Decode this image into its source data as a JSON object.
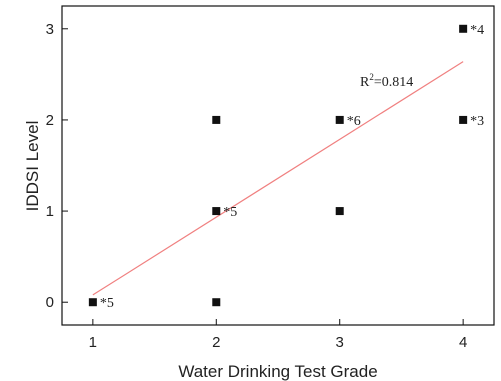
{
  "chart_data": {
    "type": "scatter",
    "title": "",
    "xlabel": "Water Drinking Test Grade",
    "ylabel": "IDDSI Level",
    "xlim": [
      0.75,
      4.25
    ],
    "ylim": [
      -0.25,
      3.25
    ],
    "xticks": [
      1,
      2,
      3,
      4
    ],
    "yticks": [
      0,
      1,
      2,
      3
    ],
    "grid": false,
    "points": [
      {
        "x": 1,
        "y": 0,
        "label": "*5"
      },
      {
        "x": 2,
        "y": 0,
        "label": ""
      },
      {
        "x": 2,
        "y": 1,
        "label": "*5"
      },
      {
        "x": 2,
        "y": 2,
        "label": ""
      },
      {
        "x": 3,
        "y": 1,
        "label": ""
      },
      {
        "x": 3,
        "y": 2,
        "label": "*6"
      },
      {
        "x": 4,
        "y": 2,
        "label": "*3"
      },
      {
        "x": 4,
        "y": 3,
        "label": "*4"
      }
    ],
    "fit_line": {
      "x": [
        1,
        4
      ],
      "y": [
        0.08,
        2.64
      ],
      "color": "#f08080"
    },
    "r2_label": {
      "prefix": "R",
      "sup": "2",
      "value": "=0.814"
    },
    "colors": {
      "marker": "#111111",
      "axis": "#111111",
      "fit": "#f08080"
    }
  }
}
